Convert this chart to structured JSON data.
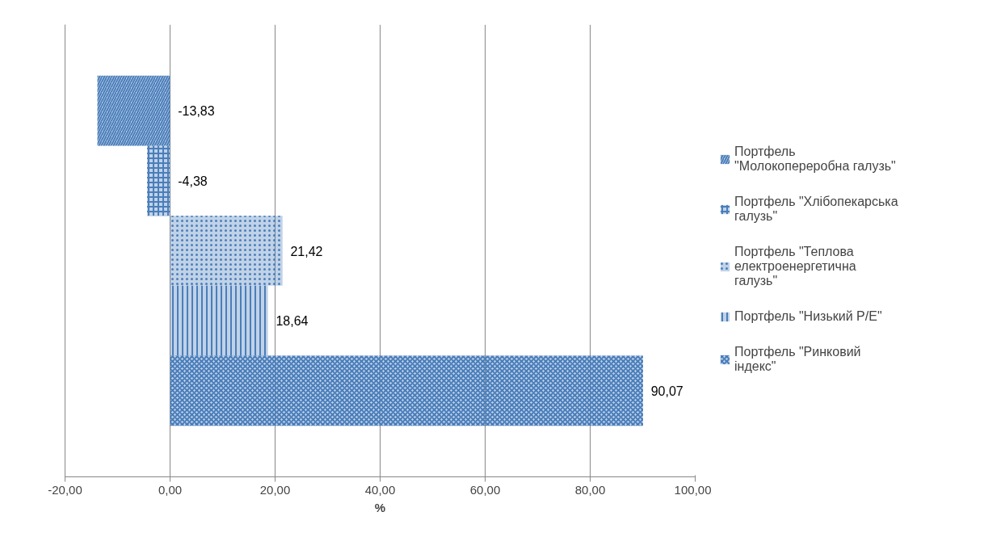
{
  "chart_data": {
    "type": "bar",
    "orientation": "horizontal",
    "categories": [
      null
    ],
    "series": [
      {
        "name": "Портфель \"Молокопереробна галузь\"",
        "color": "#4a7ebb",
        "values": [
          -13.83
        ],
        "value_labels": [
          "-13,83"
        ]
      },
      {
        "name": "Портфель \"Хлібопекарська галузь\"",
        "color": "#4a7ebb",
        "values": [
          -4.38
        ],
        "value_labels": [
          "-4,38"
        ]
      },
      {
        "name": "Портфель \"Теплова електроенергетична галузь\"",
        "color": "#4a7ebb",
        "values": [
          21.42
        ],
        "value_labels": [
          "21,42"
        ]
      },
      {
        "name": "Портфель \"Низький P/E\"",
        "color": "#4a7ebb",
        "values": [
          18.64
        ],
        "value_labels": [
          "18,64"
        ]
      },
      {
        "name": "Портфель \"Ринковий індекс\"",
        "color": "#4a7ebb",
        "values": [
          90.07
        ],
        "value_labels": [
          "90,07"
        ]
      }
    ],
    "xlabel": "%",
    "xlim": [
      -20,
      100
    ],
    "xticks": [
      {
        "value": -20,
        "label": "-20,00"
      },
      {
        "value": 0,
        "label": "0,00"
      },
      {
        "value": 20,
        "label": "20,00"
      },
      {
        "value": 40,
        "label": "40,00"
      },
      {
        "value": 60,
        "label": "60,00"
      },
      {
        "value": 80,
        "label": "80,00"
      },
      {
        "value": 100,
        "label": "100,00"
      }
    ],
    "grid": "x",
    "legend": "right",
    "tick_labels": "x"
  }
}
